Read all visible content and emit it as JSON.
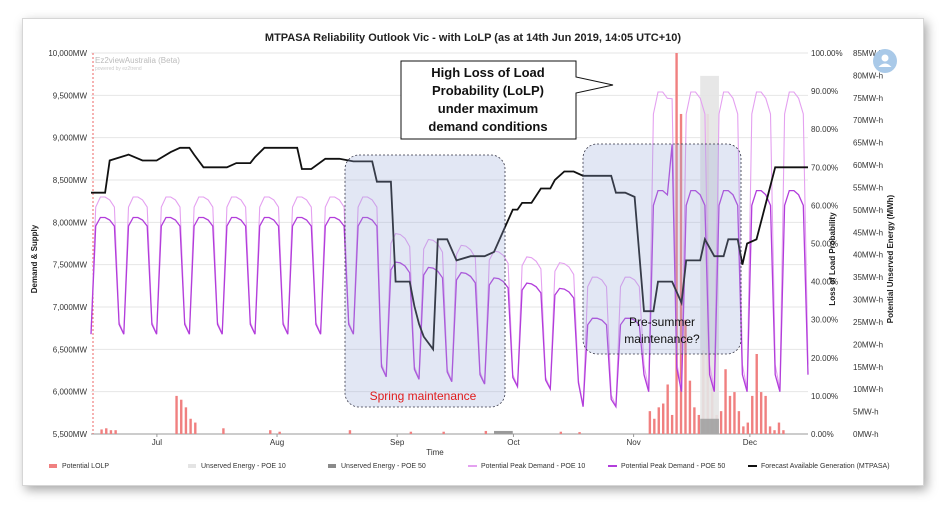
{
  "chart_data": {
    "type": "line",
    "title": "MTPASA Reliability Outlook Vic - with LoLP (as at 14th Jun 2019, 14:05 UTC+10)",
    "xlabel": "Time",
    "ylabel_left": "Demand & Supply",
    "ylabel_right1": "Loss of Load Probability",
    "ylabel_right2": "Potential Unserved Energy (MWh)",
    "y_left_ticks": [
      "5,500MW",
      "6,000MW",
      "6,500MW",
      "7,000MW",
      "7,500MW",
      "8,000MW",
      "8,500MW",
      "9,000MW",
      "9,500MW",
      "10,000MW"
    ],
    "y_right1_ticks": [
      "0.00%",
      "10.00%",
      "20.00%",
      "30.00%",
      "40.00%",
      "50.00%",
      "60.00%",
      "70.00%",
      "80.00%",
      "90.00%",
      "100.00%"
    ],
    "y_right2_ticks": [
      "0MW-h",
      "5MW-h",
      "10MW-h",
      "15MW-h",
      "20MW-h",
      "25MW-h",
      "30MW-h",
      "35MW-h",
      "40MW-h",
      "45MW-h",
      "50MW-h",
      "55MW-h",
      "60MW-h",
      "65MW-h",
      "70MW-h",
      "75MW-h",
      "80MW-h",
      "85MW-h"
    ],
    "x_ticks": [
      "Jul",
      "Aug",
      "Sep",
      "Oct",
      "Nov",
      "Dec"
    ],
    "ylim_left": [
      5500,
      10000
    ],
    "ylim_right1": [
      0,
      100
    ],
    "ylim_right2": [
      0,
      85
    ],
    "legend": [
      {
        "label": "Potential LOLP",
        "color": "#f08080",
        "kind": "bar"
      },
      {
        "label": "Unserved Energy - POE 10",
        "color": "#e4e4e4",
        "kind": "area"
      },
      {
        "label": "Unserved Energy - POE 50",
        "color": "#8a8a8a",
        "kind": "area"
      },
      {
        "label": "Potential Peak Demand - POE 10",
        "color": "#e4a1f0",
        "kind": "line"
      },
      {
        "label": "Potential Peak Demand - POE 50",
        "color": "#b23ddb",
        "kind": "line"
      },
      {
        "label": "Forecast Available Generation (MTPASA)",
        "color": "#111111",
        "kind": "line"
      }
    ],
    "watermark": {
      "line1": "Ez2viewAustralia (Beta)",
      "line2": "powered by ez2trend"
    },
    "annotations": {
      "lolp_callout": [
        "High Loss of Load",
        "Probability (LoLP)",
        "under maximum",
        "demand conditions"
      ],
      "pre_summer": [
        "Pre-summer",
        "maintenance?"
      ],
      "spring": "Spring maintenance"
    },
    "generation_points": [
      [
        0,
        8350
      ],
      [
        3,
        8350
      ],
      [
        4,
        8730
      ],
      [
        8,
        8800
      ],
      [
        11,
        8730
      ],
      [
        14,
        8730
      ],
      [
        17,
        8830
      ],
      [
        19,
        8880
      ],
      [
        21,
        8880
      ],
      [
        22,
        8800
      ],
      [
        24,
        8650
      ],
      [
        26,
        8650
      ],
      [
        29,
        8650
      ],
      [
        31,
        8700
      ],
      [
        34,
        8700
      ],
      [
        35,
        8770
      ],
      [
        37,
        8880
      ],
      [
        40,
        8880
      ],
      [
        44,
        8880
      ],
      [
        45,
        8630
      ],
      [
        47,
        8630
      ],
      [
        50,
        8750
      ],
      [
        53,
        8750
      ],
      [
        56,
        8720
      ],
      [
        60,
        8720
      ],
      [
        61,
        8480
      ],
      [
        64,
        8480
      ],
      [
        65,
        7300
      ],
      [
        68,
        7300
      ],
      [
        69,
        7010
      ],
      [
        70,
        6800
      ],
      [
        71,
        6650
      ],
      [
        73,
        6500
      ],
      [
        74,
        7800
      ],
      [
        75,
        7800
      ],
      [
        76,
        7800
      ],
      [
        78,
        7550
      ],
      [
        81,
        7600
      ],
      [
        84,
        7600
      ],
      [
        86,
        7650
      ],
      [
        88,
        7900
      ],
      [
        90,
        8150
      ],
      [
        91,
        8150
      ],
      [
        92,
        8230
      ],
      [
        94,
        8230
      ],
      [
        96,
        8400
      ],
      [
        98,
        8400
      ],
      [
        99,
        8500
      ],
      [
        101,
        8600
      ],
      [
        103,
        8600
      ],
      [
        105,
        8550
      ],
      [
        107,
        8550
      ],
      [
        111,
        8550
      ],
      [
        112,
        8350
      ],
      [
        114,
        8350
      ],
      [
        116,
        8300
      ],
      [
        118,
        6950
      ],
      [
        120,
        6950
      ],
      [
        121,
        7300
      ],
      [
        124,
        7300
      ],
      [
        126,
        7050
      ],
      [
        127,
        7550
      ],
      [
        130,
        7550
      ],
      [
        131,
        7800
      ],
      [
        133,
        7600
      ],
      [
        135,
        7600
      ],
      [
        136,
        7800
      ],
      [
        138,
        7800
      ],
      [
        139,
        7500
      ],
      [
        140,
        7750
      ],
      [
        142,
        7800
      ],
      [
        146,
        8650
      ],
      [
        150,
        8650
      ],
      [
        153,
        8650
      ]
    ]
  }
}
